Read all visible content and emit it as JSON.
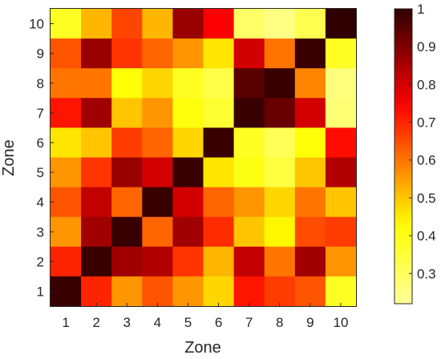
{
  "chart_data": {
    "type": "heatmap",
    "title": "",
    "xlabel": "Zone",
    "ylabel": "Zone",
    "x_categories": [
      "1",
      "2",
      "3",
      "4",
      "5",
      "6",
      "7",
      "8",
      "9",
      "10"
    ],
    "y_categories": [
      "1",
      "2",
      "3",
      "4",
      "5",
      "6",
      "7",
      "8",
      "9",
      "10"
    ],
    "rows_top_to_bottom": [
      [
        0.38,
        0.52,
        0.66,
        0.52,
        0.87,
        0.75,
        0.29,
        0.25,
        0.32,
        1.0
      ],
      [
        0.64,
        0.87,
        0.68,
        0.62,
        0.56,
        0.46,
        0.8,
        0.6,
        0.99,
        0.38
      ],
      [
        0.6,
        0.6,
        0.42,
        0.48,
        0.38,
        0.33,
        0.95,
        0.99,
        0.58,
        0.26
      ],
      [
        0.72,
        0.86,
        0.5,
        0.56,
        0.41,
        0.36,
        0.99,
        0.93,
        0.8,
        0.27
      ],
      [
        0.46,
        0.5,
        0.67,
        0.62,
        0.48,
        0.99,
        0.38,
        0.31,
        0.42,
        0.73
      ],
      [
        0.56,
        0.68,
        0.87,
        0.8,
        0.99,
        0.46,
        0.4,
        0.34,
        0.5,
        0.84
      ],
      [
        0.64,
        0.82,
        0.62,
        0.99,
        0.8,
        0.62,
        0.56,
        0.48,
        0.6,
        0.5
      ],
      [
        0.56,
        0.86,
        0.99,
        0.62,
        0.86,
        0.69,
        0.5,
        0.44,
        0.65,
        0.67
      ],
      [
        0.7,
        0.99,
        0.86,
        0.84,
        0.68,
        0.52,
        0.82,
        0.6,
        0.86,
        0.56
      ],
      [
        0.99,
        0.7,
        0.56,
        0.64,
        0.56,
        0.48,
        0.72,
        0.67,
        0.64,
        0.38
      ]
    ],
    "colorbar": {
      "colormap": "hot (reversed)",
      "range": [
        0.22,
        1.0
      ],
      "ticks": [
        "0.3",
        "0.4",
        "0.5",
        "0.6",
        "0.7",
        "0.8",
        "0.9",
        "1"
      ],
      "tick_values": [
        0.3,
        0.4,
        0.5,
        0.6,
        0.7,
        0.8,
        0.9,
        1.0
      ]
    },
    "grid": false,
    "legend": "none"
  }
}
